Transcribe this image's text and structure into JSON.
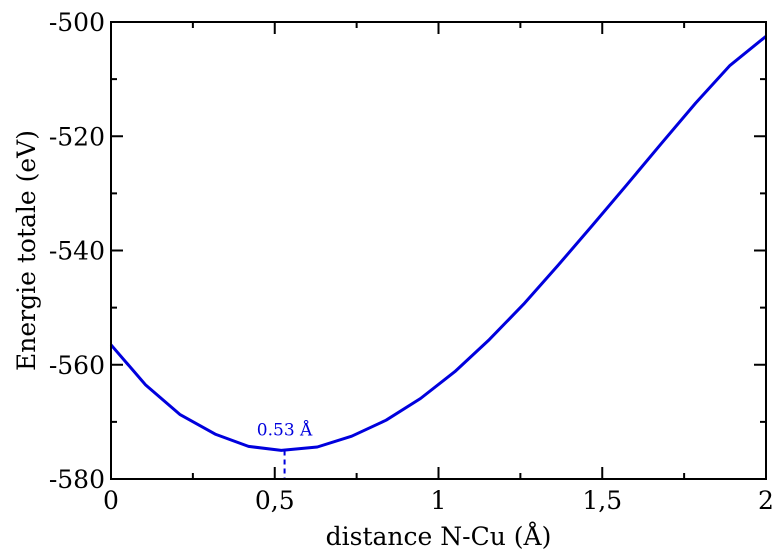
{
  "chart_data": {
    "type": "line",
    "title": "",
    "xlabel": "distance N-Cu (Å)",
    "ylabel": "Energie totale (eV)",
    "xlim": [
      0,
      2
    ],
    "ylim": [
      -580,
      -500
    ],
    "x_ticks": [
      {
        "value": 0,
        "label": "0"
      },
      {
        "value": 0.5,
        "label": "0,5"
      },
      {
        "value": 1,
        "label": "1"
      },
      {
        "value": 1.5,
        "label": "1,5"
      },
      {
        "value": 2,
        "label": "2"
      }
    ],
    "y_ticks": [
      {
        "value": -580,
        "label": "-580"
      },
      {
        "value": -560,
        "label": "-560"
      },
      {
        "value": -540,
        "label": "-540"
      },
      {
        "value": -520,
        "label": "-520"
      },
      {
        "value": -500,
        "label": "-500"
      }
    ],
    "grid": false,
    "series": [
      {
        "color": "#0000dd",
        "x": [
          0,
          0.105,
          0.21,
          0.32,
          0.42,
          0.52,
          0.63,
          0.735,
          0.84,
          0.945,
          1.05,
          1.155,
          1.26,
          1.365,
          1.47,
          1.575,
          1.68,
          1.785,
          1.89,
          2.0
        ],
        "y": [
          -556.5,
          -563.5,
          -568.7,
          -572.2,
          -574.3,
          -575.0,
          -574.4,
          -572.5,
          -569.7,
          -565.9,
          -561.2,
          -555.6,
          -549.4,
          -542.6,
          -535.6,
          -528.5,
          -521.3,
          -514.2,
          -507.6,
          -502.5
        ]
      }
    ],
    "annotations": [
      {
        "text": "0.53 Å",
        "x": 0.53,
        "y": -575.0,
        "style": "dashed-vertical-marker",
        "color": "#0000dd"
      }
    ]
  }
}
